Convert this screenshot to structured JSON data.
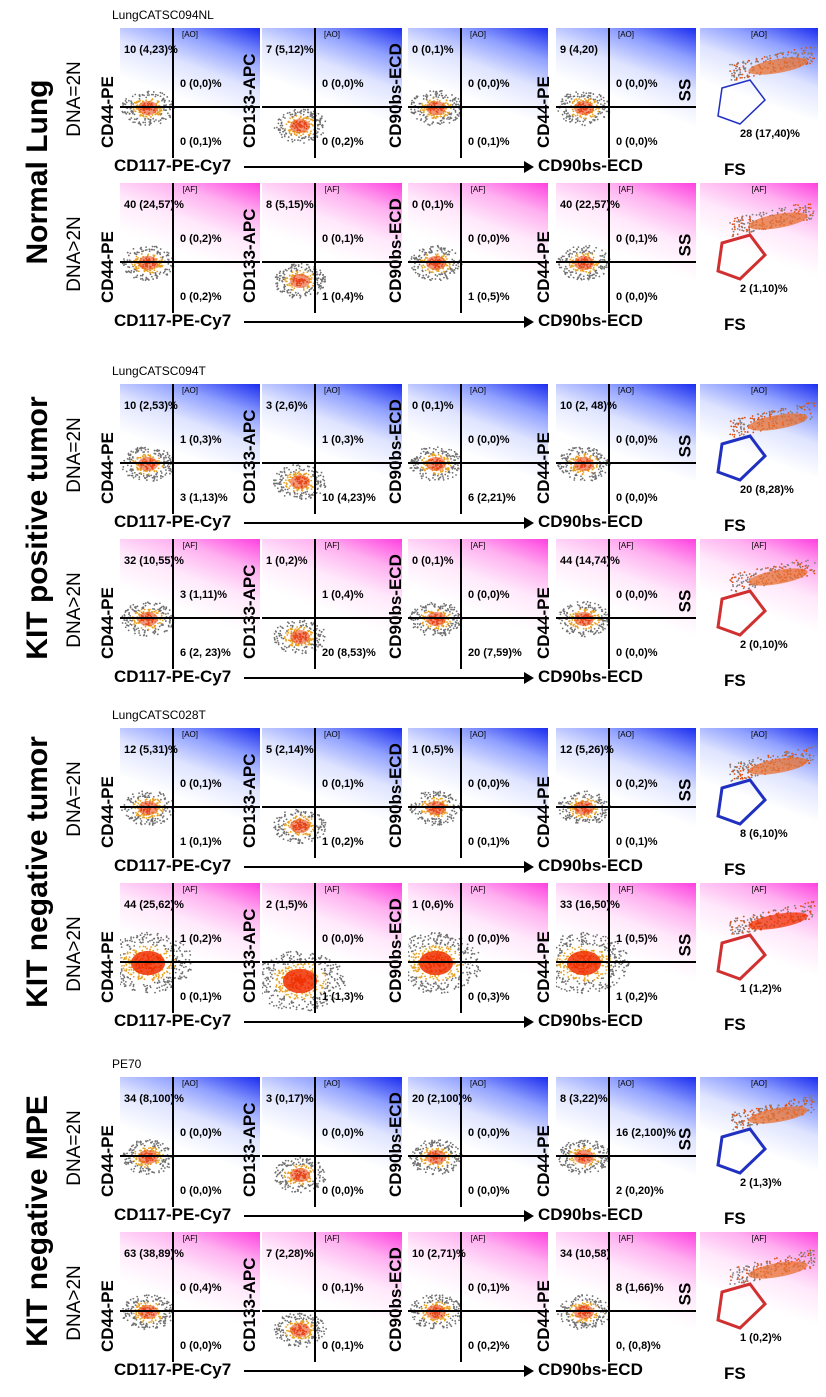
{
  "groups": [
    {
      "row_label": "Normal Lung",
      "sample": "LungCATSC094NL",
      "xaxis_left": "CD117-PE-Cy7",
      "xaxis_right": "CD90bs-ECD",
      "gate_axes": {
        "x": "FS",
        "y": "SS"
      },
      "rows": [
        {
          "dna": "DNA=2N",
          "tag": "[AO]",
          "color": "#2030c0",
          "plots": [
            {
              "ylabel": "CD44-PE",
              "tl": "10 (4,23)%",
              "tr": "0 (0,0)%",
              "br": "0 (0,1)%"
            },
            {
              "ylabel": "CD133-APC",
              "tl": "7 (5,12)%",
              "tr": "0 (0,0)%",
              "br": "0 (0,2)%"
            },
            {
              "ylabel": "CD90bs-ECD",
              "tl": "0 (0,1)%",
              "tr": "0 (0,0)%",
              "br": "0 (0,1)%"
            },
            {
              "ylabel": "CD44-PE",
              "tl": "9 (4,20)",
              "tr": "0 (0,0)%",
              "br": "0 (0,0)%"
            }
          ],
          "gate": "28 (17,40)%"
        },
        {
          "dna": "DNA>2N",
          "tag": "[AF]",
          "color": "#d03030",
          "plots": [
            {
              "ylabel": "CD44-PE",
              "tl": "40 (24,57)%",
              "tr": "0 (0,2)%",
              "br": "0 (0,2)%"
            },
            {
              "ylabel": "CD133-APC",
              "tl": "8 (5,15)%",
              "tr": "0 (0,1)%",
              "br": "1 (0,4)%"
            },
            {
              "ylabel": "CD90bs-ECD",
              "tl": "0 (0,1)%",
              "tr": "0 (0,0)%",
              "br": "1 (0,5)%"
            },
            {
              "ylabel": "CD44-PE",
              "tl": "40 (22,57)%",
              "tr": "0 (0,1)%",
              "br": "0 (0,0)%"
            }
          ],
          "gate": "2 (1,10)%"
        }
      ]
    },
    {
      "row_label": "KIT positive tumor",
      "sample": "LungCATSC094T",
      "xaxis_left": "CD117-PE-Cy7",
      "xaxis_right": "CD90bs-ECD",
      "gate_axes": {
        "x": "FS",
        "y": "SS"
      },
      "rows": [
        {
          "dna": "DNA=2N",
          "tag": "[AO]",
          "color": "#2030c0",
          "plots": [
            {
              "ylabel": "CD44-PE",
              "tl": "10 (2,53)%",
              "tr": "1 (0,3)%",
              "br": "3 (1,13)%"
            },
            {
              "ylabel": "CD133-APC",
              "tl": "3 (2,6)%",
              "tr": "1 (0,3)%",
              "br": "10 (4,23)%"
            },
            {
              "ylabel": "CD90bs-ECD",
              "tl": "0 (0,1)%",
              "tr": "0 (0,0)%",
              "br": "6 (2,21)%"
            },
            {
              "ylabel": "CD44-PE",
              "tl": "10 (2, 48)%",
              "tr": "0 (0,0)%",
              "br": "0 (0,0)%"
            }
          ],
          "gate": "20 (8,28)%"
        },
        {
          "dna": "DNA>2N",
          "tag": "[AF]",
          "color": "#d03030",
          "plots": [
            {
              "ylabel": "CD44-PE",
              "tl": "32 (10,55)%",
              "tr": "3 (1,11)%",
              "br": "6 (2, 23)%"
            },
            {
              "ylabel": "CD133-APC",
              "tl": "1 (0,2)%",
              "tr": "1 (0,4)%",
              "br": "20 (8,53)%"
            },
            {
              "ylabel": "CD90bs-ECD",
              "tl": "0 (0,1)%",
              "tr": "0 (0,0)%",
              "br": "20 (7,59)%"
            },
            {
              "ylabel": "CD44-PE",
              "tl": "44 (14,74)%",
              "tr": "0 (0,0)%",
              "br": "0 (0,0)%"
            }
          ],
          "gate": "2 (0,10)%"
        }
      ]
    },
    {
      "row_label": "KIT negative tumor",
      "sample": "LungCATSC028T",
      "xaxis_left": "CD117-PE-Cy7",
      "xaxis_right": "CD90bs-ECD",
      "gate_axes": {
        "x": "FS",
        "y": "SS"
      },
      "rows": [
        {
          "dna": "DNA=2N",
          "tag": "[AO]",
          "color": "#2030c0",
          "plots": [
            {
              "ylabel": "CD44-PE",
              "tl": "12 (5,31)%",
              "tr": "0 (0,1)%",
              "br": "1 (0,1)%"
            },
            {
              "ylabel": "CD133-APC",
              "tl": "5 (2,14)%",
              "tr": "0 (0,1)%",
              "br": "1 (0,2)%"
            },
            {
              "ylabel": "CD90bs-ECD",
              "tl": "1 (0,5)%",
              "tr": "0 (0,0)%",
              "br": "0 (0,1)%"
            },
            {
              "ylabel": "CD44-PE",
              "tl": "12 (5,26)%",
              "tr": "0 (0,2)%",
              "br": "0 (0,1)%"
            }
          ],
          "gate": "8 (6,10)%"
        },
        {
          "dna": "DNA>2N",
          "tag": "[AF]",
          "color": "#d03030",
          "plots": [
            {
              "ylabel": "CD44-PE",
              "tl": "44 (25,62)%",
              "tr": "1 (0,2)%",
              "br": "0 (0,1)%"
            },
            {
              "ylabel": "CD133-APC",
              "tl": "2 (1,5)%",
              "tr": "0 (0,0)%",
              "br": "1 (1,3)%"
            },
            {
              "ylabel": "CD90bs-ECD",
              "tl": "1 (0,6)%",
              "tr": "0 (0,0)%",
              "br": "0 (0,3)%"
            },
            {
              "ylabel": "CD44-PE",
              "tl": "33 (16,50)%",
              "tr": "1 (0,5)%",
              "br": "1 (0,2)%"
            }
          ],
          "gate": "1 (1,2)%"
        }
      ]
    },
    {
      "row_label": "KIT negative MPE",
      "sample": "PE70",
      "xaxis_left": "CD117-PE-Cy7",
      "xaxis_right": "CD90bs-ECD",
      "gate_axes": {
        "x": "FS",
        "y": "SS"
      },
      "rows": [
        {
          "dna": "DNA=2N",
          "tag": "[AO]",
          "color": "#2030c0",
          "plots": [
            {
              "ylabel": "CD44-PE",
              "tl": "34 (8,100)%",
              "tr": "0 (0,0)%",
              "br": "0 (0,0)%"
            },
            {
              "ylabel": "CD133-APC",
              "tl": "3 (0,17)%",
              "tr": "0 (0,0)%",
              "br": "0 (0,0)%"
            },
            {
              "ylabel": "CD90bs-ECD",
              "tl": "20 (2,100)%",
              "tr": "0 (0,0)%",
              "br": "0 (0,0)%"
            },
            {
              "ylabel": "CD44-PE",
              "tl": "8 (3,22)%",
              "tr": "16 (2,100)%",
              "br": "2 (0,20)%"
            }
          ],
          "gate": "2 (1,3)%"
        },
        {
          "dna": "DNA>2N",
          "tag": "[AF]",
          "color": "#d03030",
          "plots": [
            {
              "ylabel": "CD44-PE",
              "tl": "63 (38,89)%",
              "tr": "0 (0,4)%",
              "br": "0 (0,0)%"
            },
            {
              "ylabel": "CD133-APC",
              "tl": "7 (2,28)%",
              "tr": "0 (0,1)%",
              "br": "0 (0,1)%"
            },
            {
              "ylabel": "CD90bs-ECD",
              "tl": "10 (2,71)%",
              "tr": "0 (0,1)%",
              "br": "0 (0,2)%"
            },
            {
              "ylabel": "CD44-PE",
              "tl": "34 (10,58)",
              "tr": "8 (1,66)%",
              "br": "0, (0,8)%"
            }
          ],
          "gate": "1 (0,2)%"
        }
      ]
    }
  ]
}
